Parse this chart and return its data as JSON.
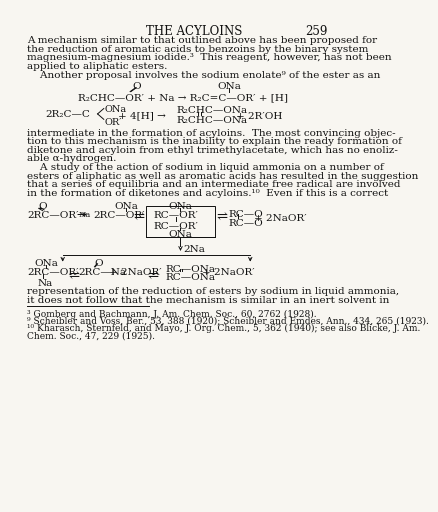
{
  "title": "THE ACYLOINS",
  "page_number": "259",
  "bg": "#f8f6f1",
  "tc": "#111111",
  "fs": 7.5,
  "tfs": 8.5,
  "para1": "A mechanism similar to that outlined above has been proposed for\nthe reduction of aromatic acids to benzoins by the binary system\nmagnesium-magnesium iodide.³  This reagent, however, has not been\napplied to aliphatic esters.",
  "para2": "    Another proposal involves the sodium enolate⁹ of the ester as an",
  "para3": "intermediate in the formation of acyloins.  The most convincing objec-\ntion to this mechanism is the inability to explain the ready formation of\ndiketone and acyloin from ethyl trimethylacetate, which has no enoliz-\nable α-hydrogen.",
  "para4": "    A study of the action of sodium in liquid ammonia on a number of\nesters of aliphatic as well as aromatic acids has resulted in the suggestion\nthat a series of equilibria and an intermediate free radical are involved\nin the formation of diketones and acyloins.¹⁰  Even if this is a correct",
  "para5": "representation of the reduction of esters by sodium in liquid ammonia,\nit does not follow that the mechanism is similar in an inert solvent in",
  "fn1": "³ Gomberg and Bachmann, J. Am. Chem. Soc., 60, 2762 (1928).",
  "fn2": "⁹ Scheibler and Voss, Ber., 53, 388 (1920); Scheibler and Emdes, Ann., 434, 265 (1923).",
  "fn3a": "¹⁰ Kharasch, Sternfeld, and Mayo, J. Org. Chem., 5, 362 (1940); see also Blicke, J. Am.",
  "fn3b": "Chem. Soc., 47, 229 (1925)."
}
